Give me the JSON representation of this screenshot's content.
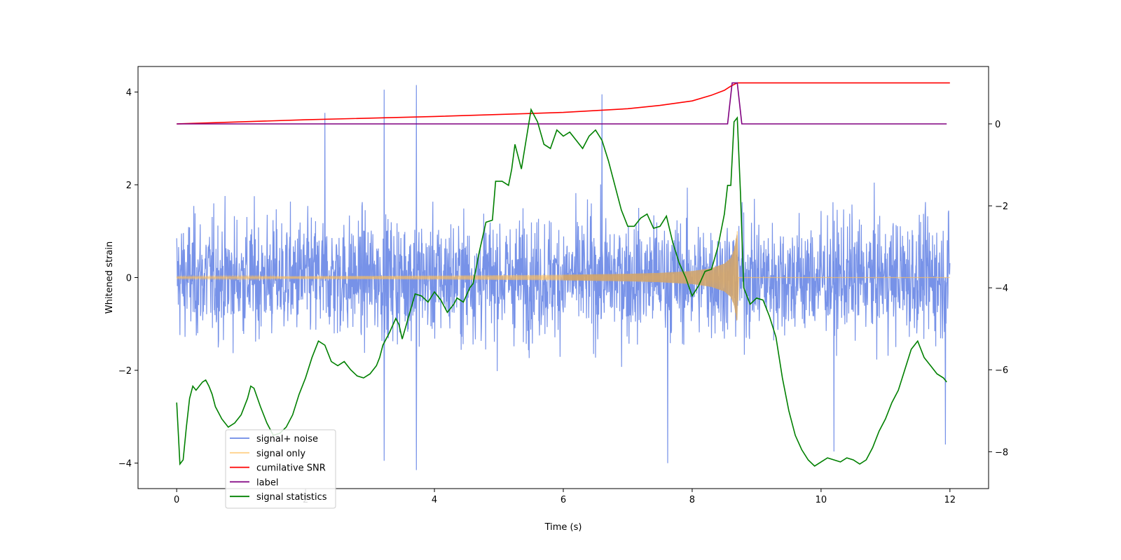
{
  "chart_data": {
    "type": "line",
    "title": "",
    "xlabel": "Time (s)",
    "ylabel": "Whitened strain",
    "ylabel_right": "",
    "xlim": [
      -0.6,
      12.6
    ],
    "ylim": [
      -4.55,
      4.55
    ],
    "ylim_right": [
      -8.9,
      1.4
    ],
    "x_ticks": [
      0,
      2,
      4,
      6,
      8,
      10,
      12
    ],
    "x_tick_labels": [
      "0",
      "2",
      "4",
      "6",
      "8",
      "10",
      "12"
    ],
    "y_ticks": [
      -4,
      -2,
      0,
      2,
      4
    ],
    "y_tick_labels": [
      "−4",
      "−2",
      "0",
      "2",
      "4"
    ],
    "y_ticks_right": [
      -8,
      -6,
      -4,
      -2,
      0
    ],
    "y_tick_labels_right": [
      "−8",
      "−6",
      "−4",
      "−2",
      "0"
    ],
    "grid": false,
    "legend_position": "lower-left",
    "series": [
      {
        "name": "signal+ noise",
        "axis": "left",
        "color": "#6b89e6",
        "description": "whitened noise plus injected chirp, sampled 0–12 s",
        "x_range": [
          0,
          12
        ],
        "amplitude_std": 0.9,
        "peaks": [
          {
            "x": 3.22,
            "y": 4.05
          },
          {
            "x": 3.72,
            "y": 4.15
          },
          {
            "x": 6.6,
            "y": 3.95
          },
          {
            "x": 2.3,
            "y": 3.55
          },
          {
            "x": 3.72,
            "y": -4.15
          },
          {
            "x": 3.22,
            "y": -3.95
          },
          {
            "x": 7.62,
            "y": -4.0
          },
          {
            "x": 10.2,
            "y": -3.75
          },
          {
            "x": 11.93,
            "y": -3.6
          }
        ]
      },
      {
        "name": "signal only",
        "axis": "left",
        "color": "#ffbf5a",
        "description": "chirp envelope growing to merger",
        "x": [
          0,
          2,
          4,
          6,
          7,
          7.5,
          8,
          8.3,
          8.5,
          8.6,
          8.65,
          8.7,
          8.72,
          12
        ],
        "envelope": [
          0.02,
          0.03,
          0.04,
          0.06,
          0.08,
          0.1,
          0.14,
          0.2,
          0.3,
          0.42,
          0.6,
          1.0,
          0.0,
          0.0
        ]
      },
      {
        "name": "cumilative SNR",
        "axis": "right",
        "color": "#ff0000",
        "x": [
          0,
          2,
          4,
          6,
          7,
          7.5,
          8,
          8.3,
          8.5,
          8.6,
          8.7,
          12
        ],
        "values": [
          0.0,
          0.1,
          0.18,
          0.28,
          0.37,
          0.45,
          0.56,
          0.7,
          0.82,
          0.92,
          1.0,
          1.0
        ]
      },
      {
        "name": "label",
        "axis": "right",
        "color": "#800080",
        "x": [
          0,
          8.55,
          8.62,
          8.7,
          8.77,
          11.95
        ],
        "values": [
          0,
          0,
          1,
          1,
          0,
          0
        ]
      },
      {
        "name": "signal statistics",
        "axis": "right",
        "color": "#008000",
        "x": [
          0,
          0.05,
          0.1,
          0.15,
          0.2,
          0.25,
          0.3,
          0.35,
          0.4,
          0.45,
          0.5,
          0.55,
          0.6,
          0.7,
          0.8,
          0.9,
          1.0,
          1.1,
          1.15,
          1.2,
          1.3,
          1.4,
          1.5,
          1.6,
          1.7,
          1.8,
          1.9,
          2.0,
          2.1,
          2.2,
          2.3,
          2.35,
          2.4,
          2.5,
          2.6,
          2.7,
          2.8,
          2.9,
          3.0,
          3.1,
          3.15,
          3.2,
          3.3,
          3.4,
          3.45,
          3.5,
          3.6,
          3.7,
          3.8,
          3.9,
          4.0,
          4.1,
          4.2,
          4.3,
          4.35,
          4.45,
          4.55,
          4.6,
          4.7,
          4.8,
          4.9,
          4.95,
          5.05,
          5.15,
          5.2,
          5.25,
          5.35,
          5.5,
          5.6,
          5.7,
          5.8,
          5.9,
          6.0,
          6.1,
          6.2,
          6.3,
          6.4,
          6.5,
          6.6,
          6.7,
          6.8,
          6.9,
          7.0,
          7.1,
          7.2,
          7.3,
          7.4,
          7.5,
          7.6,
          7.7,
          7.8,
          7.9,
          8.0,
          8.1,
          8.2,
          8.3,
          8.4,
          8.5,
          8.55,
          8.6,
          8.65,
          8.7,
          8.75,
          8.8,
          8.9,
          9.0,
          9.1,
          9.2,
          9.3,
          9.4,
          9.5,
          9.6,
          9.7,
          9.8,
          9.9,
          10.0,
          10.1,
          10.2,
          10.3,
          10.4,
          10.5,
          10.6,
          10.7,
          10.8,
          10.9,
          11.0,
          11.1,
          11.2,
          11.3,
          11.4,
          11.5,
          11.6,
          11.7,
          11.8,
          11.9,
          11.95
        ],
        "values": [
          -6.8,
          -8.3,
          -8.2,
          -7.4,
          -6.7,
          -6.4,
          -6.5,
          -6.4,
          -6.3,
          -6.25,
          -6.4,
          -6.6,
          -6.9,
          -7.2,
          -7.4,
          -7.3,
          -7.1,
          -6.7,
          -6.4,
          -6.45,
          -6.9,
          -7.3,
          -7.6,
          -7.55,
          -7.4,
          -7.1,
          -6.6,
          -6.2,
          -5.7,
          -5.3,
          -5.4,
          -5.6,
          -5.8,
          -5.9,
          -5.8,
          -6.0,
          -6.15,
          -6.2,
          -6.1,
          -5.9,
          -5.7,
          -5.4,
          -5.1,
          -4.75,
          -4.9,
          -5.25,
          -4.7,
          -4.15,
          -4.2,
          -4.35,
          -4.1,
          -4.3,
          -4.6,
          -4.4,
          -4.25,
          -4.35,
          -4.0,
          -3.9,
          -3.1,
          -2.4,
          -2.35,
          -1.4,
          -1.4,
          -1.5,
          -1.1,
          -0.5,
          -1.1,
          0.35,
          0.05,
          -0.5,
          -0.6,
          -0.15,
          -0.3,
          -0.2,
          -0.4,
          -0.6,
          -0.3,
          -0.15,
          -0.4,
          -0.9,
          -1.5,
          -2.1,
          -2.5,
          -2.5,
          -2.3,
          -2.2,
          -2.55,
          -2.5,
          -2.25,
          -2.9,
          -3.4,
          -3.75,
          -4.2,
          -3.95,
          -3.6,
          -3.55,
          -3.0,
          -2.2,
          -1.5,
          -1.5,
          0.05,
          0.15,
          -1.7,
          -4.0,
          -4.4,
          -4.25,
          -4.3,
          -4.7,
          -5.2,
          -6.2,
          -7.0,
          -7.6,
          -7.95,
          -8.2,
          -8.35,
          -8.25,
          -8.15,
          -8.2,
          -8.25,
          -8.15,
          -8.2,
          -8.3,
          -8.2,
          -7.9,
          -7.5,
          -7.2,
          -6.8,
          -6.5,
          -6.0,
          -5.5,
          -5.3,
          -5.7,
          -5.9,
          -6.1,
          -6.2,
          -6.3
        ]
      }
    ]
  }
}
